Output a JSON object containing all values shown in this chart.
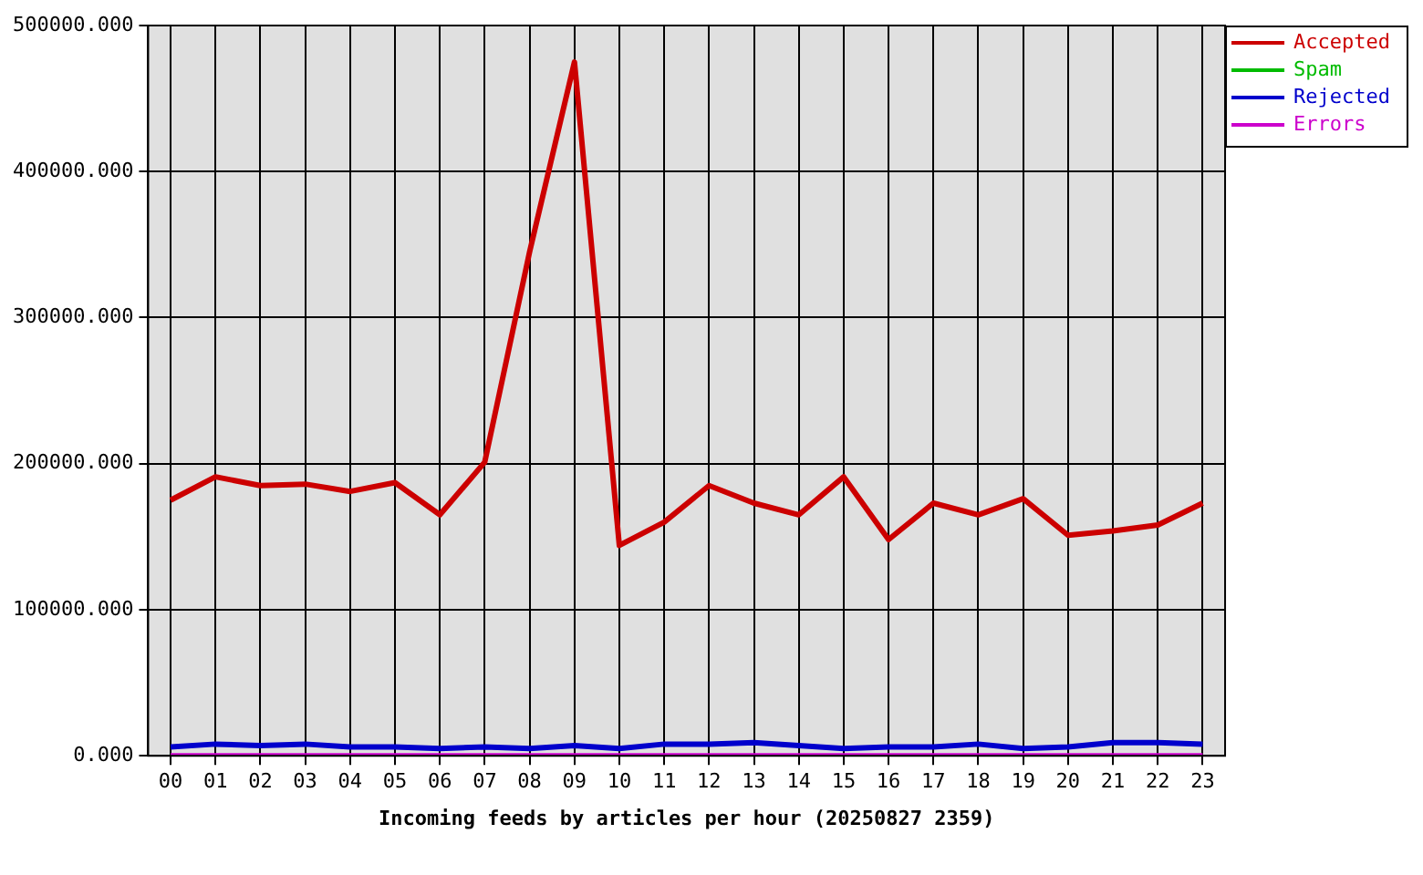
{
  "chart_data": {
    "type": "line",
    "xlabel": "Incoming feeds by articles per hour (20250827 2359)",
    "categories": [
      "00",
      "01",
      "02",
      "03",
      "04",
      "05",
      "06",
      "07",
      "08",
      "09",
      "10",
      "11",
      "12",
      "13",
      "14",
      "15",
      "16",
      "17",
      "18",
      "19",
      "20",
      "21",
      "22",
      "23"
    ],
    "series": [
      {
        "name": "Accepted",
        "color": "#cc0000",
        "values": [
          175000,
          191000,
          185000,
          186000,
          181000,
          187000,
          165000,
          201000,
          345000,
          475000,
          144000,
          160000,
          185000,
          173000,
          165000,
          191000,
          148000,
          173000,
          165000,
          176000,
          151000,
          154000,
          158000,
          173000
        ]
      },
      {
        "name": "Spam",
        "color": "#00bb00",
        "values": [
          null,
          null,
          null,
          null,
          null,
          null,
          null,
          null,
          null,
          null,
          null,
          null,
          null,
          null,
          null,
          null,
          null,
          null,
          null,
          null,
          null,
          null,
          null,
          null
        ]
      },
      {
        "name": "Rejected",
        "color": "#0000cc",
        "values": [
          6000,
          8000,
          7000,
          8000,
          6000,
          6000,
          5000,
          6000,
          5000,
          7000,
          5000,
          8000,
          8000,
          9000,
          7000,
          5000,
          6000,
          6000,
          8000,
          5000,
          6000,
          9000,
          9000,
          8000
        ]
      },
      {
        "name": "Errors",
        "color": "#cc00cc",
        "values": [
          0,
          0,
          0,
          0,
          0,
          0,
          0,
          0,
          0,
          0,
          0,
          0,
          0,
          0,
          0,
          0,
          0,
          0,
          0,
          0,
          0,
          0,
          0,
          0
        ]
      }
    ],
    "ylim": [
      0,
      500000
    ],
    "yticks": [
      {
        "value": 0,
        "label": "0.000"
      },
      {
        "value": 100000,
        "label": "100000.000"
      },
      {
        "value": 200000,
        "label": "200000.000"
      },
      {
        "value": 300000,
        "label": "300000.000"
      },
      {
        "value": 400000,
        "label": "400000.000"
      },
      {
        "value": 500000,
        "label": "500000.000"
      }
    ],
    "grid": true,
    "legend": "top right"
  }
}
